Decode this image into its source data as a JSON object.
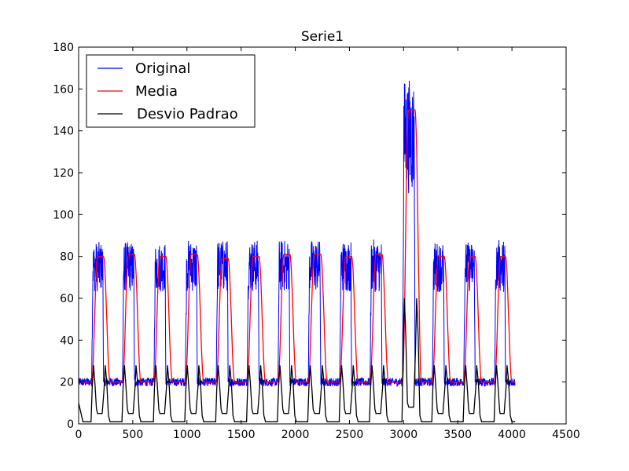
{
  "chart_data": {
    "type": "line",
    "title": "Serie1",
    "xlabel": "",
    "ylabel": "",
    "xlim": [
      0,
      4500
    ],
    "ylim": [
      0,
      180
    ],
    "xticks": [
      0,
      500,
      1000,
      1500,
      2000,
      2500,
      3000,
      3500,
      4000,
      4500
    ],
    "yticks": [
      0,
      20,
      40,
      60,
      80,
      100,
      120,
      140,
      160,
      180
    ],
    "x_range": [
      0,
      4030
    ],
    "legend_position": "top-left",
    "grid": false,
    "series": [
      {
        "name": "Original",
        "color": "#0000ff"
      },
      {
        "name": "Media",
        "color": "#ff0000"
      },
      {
        "name": "Desvio Padrao",
        "color": "#000000"
      }
    ],
    "baseline_level": 20,
    "pulses": [
      {
        "start": 120,
        "end": 230,
        "peak": 87,
        "mean_plateau": 80
      },
      {
        "start": 405,
        "end": 515,
        "peak": 87,
        "mean_plateau": 81
      },
      {
        "start": 695,
        "end": 805,
        "peak": 87,
        "mean_plateau": 80
      },
      {
        "start": 985,
        "end": 1095,
        "peak": 88,
        "mean_plateau": 81
      },
      {
        "start": 1270,
        "end": 1380,
        "peak": 88,
        "mean_plateau": 79
      },
      {
        "start": 1555,
        "end": 1665,
        "peak": 88,
        "mean_plateau": 80
      },
      {
        "start": 1840,
        "end": 1950,
        "peak": 88,
        "mean_plateau": 81
      },
      {
        "start": 2120,
        "end": 2235,
        "peak": 88,
        "mean_plateau": 81
      },
      {
        "start": 2410,
        "end": 2520,
        "peak": 88,
        "mean_plateau": 80
      },
      {
        "start": 2690,
        "end": 2800,
        "peak": 88,
        "mean_plateau": 81
      },
      {
        "start": 2990,
        "end": 3105,
        "peak": 165,
        "mean_plateau": 150
      },
      {
        "start": 3265,
        "end": 3375,
        "peak": 87,
        "mean_plateau": 80
      },
      {
        "start": 3555,
        "end": 3660,
        "peak": 87,
        "mean_plateau": 80
      },
      {
        "start": 3840,
        "end": 3940,
        "peak": 88,
        "mean_plateau": 80
      }
    ],
    "std_peak_normal": 28,
    "std_peak_large": 60,
    "std_low_level": 1,
    "std_plateau_level": 5
  }
}
